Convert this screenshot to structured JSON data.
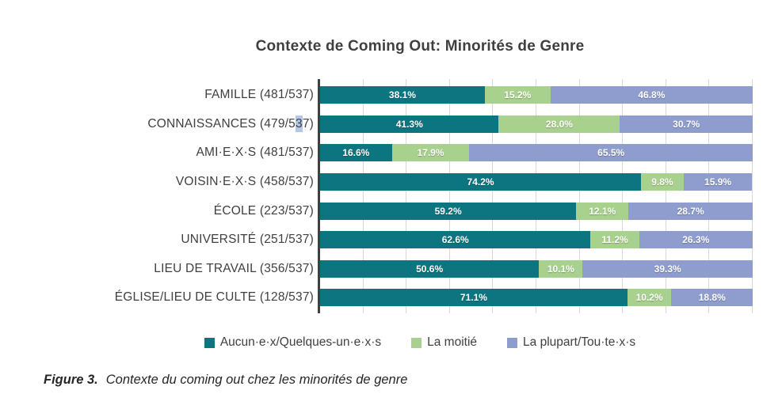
{
  "title": "Contexte de Coming Out: Minorités de Genre",
  "caption": {
    "label": "Figure 3.",
    "text": "Contexte du coming out chez les minorités de genre"
  },
  "legend": {
    "items": [
      {
        "label": "Aucun·e·x/Quelques-un·e·x·s",
        "color": "#0d7580"
      },
      {
        "label": "La moitié",
        "color": "#a9d18e"
      },
      {
        "label": "La plupart/Tou·te·x·s",
        "color": "#8e9cce"
      }
    ]
  },
  "selection": {
    "category_index": 1,
    "before": "CONNAISSANCES (479/5",
    "highlighted": "3",
    "after": "7)",
    "color": "#b4c7e7"
  },
  "chart_data": {
    "type": "bar",
    "orientation": "horizontal",
    "stacked": true,
    "title": "Contexte de Coming Out: Minorités de Genre",
    "categories": [
      "FAMILLE (481/537)",
      "CONNAISSANCES (479/537)",
      "AMI·E·X·S (481/537)",
      "VOISIN·E·X·S (458/537)",
      "ÉCOLE (223/537)",
      "UNIVERSITÉ (251/537)",
      "LIEU DE TRAVAIL (356/537)",
      "ÉGLISE/LIEU DE CULTE (128/537)"
    ],
    "series": [
      {
        "name": "Aucun·e·x/Quelques-un·e·x·s",
        "color": "#0d7580",
        "values": [
          38.1,
          41.3,
          16.6,
          74.2,
          59.2,
          62.6,
          50.6,
          71.1
        ]
      },
      {
        "name": "La moitié",
        "color": "#a9d18e",
        "values": [
          15.2,
          28.0,
          17.9,
          9.8,
          12.1,
          11.2,
          10.1,
          10.2
        ]
      },
      {
        "name": "La plupart/Tou·te·x·s",
        "color": "#8e9cce",
        "values": [
          46.8,
          30.7,
          65.5,
          15.9,
          28.7,
          26.3,
          39.3,
          18.8
        ]
      }
    ],
    "xlim": [
      0,
      100
    ],
    "gridlines": "vertical every 10%, color #d9d9d9",
    "value_label_format": "{value}%",
    "value_label_color": "#ffffff",
    "axis_color": "#404040",
    "legend_position": "bottom"
  }
}
